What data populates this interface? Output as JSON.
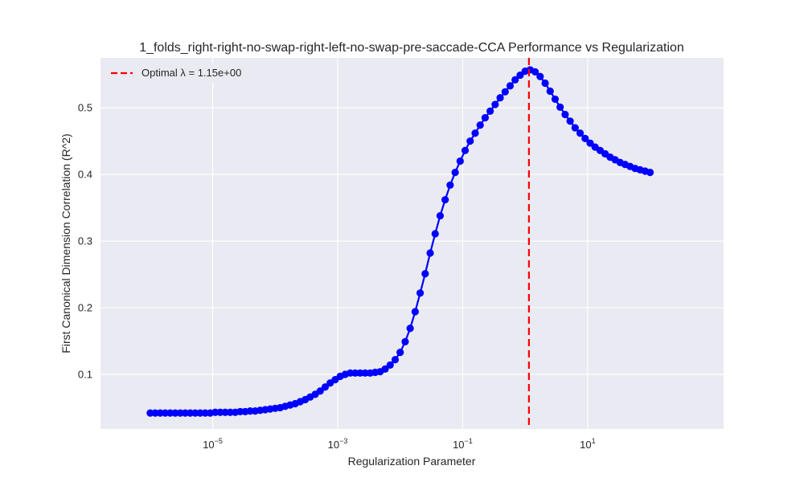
{
  "chart_data": {
    "type": "line",
    "title": "1_folds_right-right-no-swap-right-left-no-swap-pre-saccade-CCA Performance vs Regularization",
    "xlabel": "Regularization Parameter",
    "ylabel": "First Canonical Dimension Correlation (R^2)",
    "x_scale": "log",
    "xlim": [
      1.6e-07,
      1500
    ],
    "ylim": [
      0.018,
      0.575
    ],
    "grid": true,
    "legend_position": "top-left",
    "x_ticks": [
      {
        "value": 1e-05,
        "base": "10",
        "exp": "−5"
      },
      {
        "value": 0.001,
        "base": "10",
        "exp": "−3"
      },
      {
        "value": 0.1,
        "base": "10",
        "exp": "−1"
      },
      {
        "value": 10,
        "base": "10",
        "exp": "1"
      }
    ],
    "y_ticks": [
      {
        "value": 0.1,
        "label": "0.1"
      },
      {
        "value": 0.2,
        "label": "0.2"
      },
      {
        "value": 0.3,
        "label": "0.3"
      },
      {
        "value": 0.4,
        "label": "0.4"
      },
      {
        "value": 0.5,
        "label": "0.5"
      }
    ],
    "series": [
      {
        "color": "#0000ff",
        "x_range": [
          1e-06,
          100
        ],
        "values": [
          0.042,
          0.042,
          0.042,
          0.042,
          0.042,
          0.042,
          0.042,
          0.042,
          0.042,
          0.042,
          0.042,
          0.042,
          0.042,
          0.043,
          0.043,
          0.043,
          0.043,
          0.043,
          0.044,
          0.044,
          0.045,
          0.045,
          0.046,
          0.047,
          0.048,
          0.049,
          0.05,
          0.052,
          0.054,
          0.056,
          0.059,
          0.062,
          0.066,
          0.07,
          0.075,
          0.081,
          0.087,
          0.092,
          0.097,
          0.1,
          0.102,
          0.102,
          0.102,
          0.102,
          0.102,
          0.103,
          0.104,
          0.108,
          0.114,
          0.122,
          0.133,
          0.149,
          0.169,
          0.194,
          0.222,
          0.251,
          0.282,
          0.311,
          0.338,
          0.362,
          0.384,
          0.403,
          0.42,
          0.436,
          0.45,
          0.462,
          0.474,
          0.485,
          0.495,
          0.505,
          0.515,
          0.524,
          0.533,
          0.542,
          0.549,
          0.555,
          0.557,
          0.554,
          0.547,
          0.537,
          0.525,
          0.513,
          0.501,
          0.49,
          0.48,
          0.47,
          0.462,
          0.454,
          0.447,
          0.441,
          0.436,
          0.431,
          0.426,
          0.422,
          0.418,
          0.415,
          0.412,
          0.409,
          0.407,
          0.405,
          0.403
        ]
      }
    ],
    "optimal": {
      "x": 1.15,
      "color": "#ff0000",
      "legend": "Optimal λ = 1.15e+00"
    }
  }
}
